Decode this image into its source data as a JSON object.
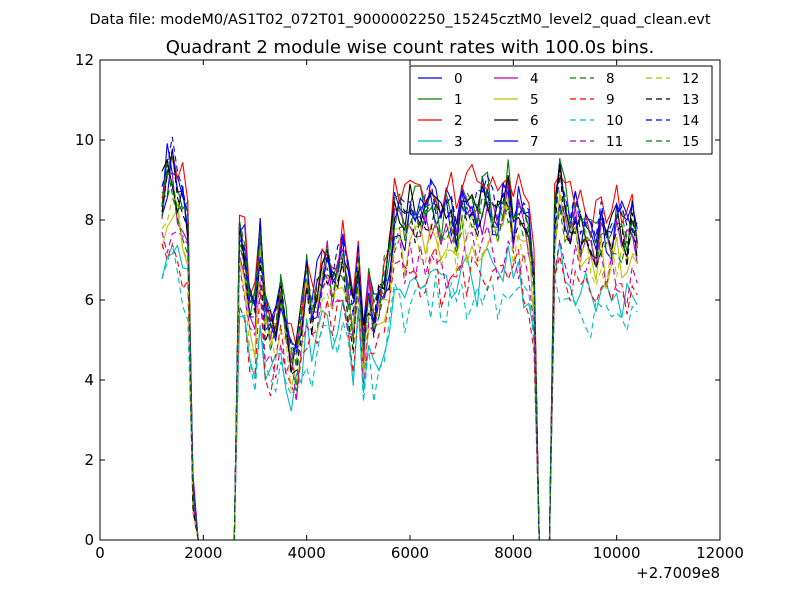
{
  "chart_data": {
    "type": "line",
    "suptitle": "Data file: modeM0/AS1T02_072T01_9000002250_15245cztM0_level2_quad_clean.evt",
    "title": "Quadrant 2 module wise count rates with 100.0s bins.",
    "xlabel": "",
    "ylabel": "",
    "xlim": [
      0,
      12000
    ],
    "ylim": [
      0,
      12
    ],
    "xticks": [
      "0",
      "2000",
      "4000",
      "6000",
      "8000",
      "10000",
      "12000"
    ],
    "yticks": [
      "0",
      "2",
      "4",
      "6",
      "8",
      "10",
      "12"
    ],
    "x_offset_label": "+2.7009e8",
    "legend_position": "top-right",
    "grid": false,
    "series": [
      {
        "name": "0",
        "color": "#0000ff",
        "dash": "solid"
      },
      {
        "name": "1",
        "color": "#008000",
        "dash": "solid"
      },
      {
        "name": "2",
        "color": "#ff0000",
        "dash": "solid"
      },
      {
        "name": "3",
        "color": "#00bfbf",
        "dash": "solid"
      },
      {
        "name": "4",
        "color": "#bf00bf",
        "dash": "solid"
      },
      {
        "name": "5",
        "color": "#bfbf00",
        "dash": "solid"
      },
      {
        "name": "6",
        "color": "#000000",
        "dash": "solid"
      },
      {
        "name": "7",
        "color": "#0000ff",
        "dash": "solid"
      },
      {
        "name": "8",
        "color": "#008000",
        "dash": "dashed"
      },
      {
        "name": "9",
        "color": "#ff0000",
        "dash": "dashed"
      },
      {
        "name": "10",
        "color": "#00bfbf",
        "dash": "dashed"
      },
      {
        "name": "11",
        "color": "#bf00bf",
        "dash": "dashed"
      },
      {
        "name": "12",
        "color": "#bfbf00",
        "dash": "dashed"
      },
      {
        "name": "13",
        "color": "#000000",
        "dash": "dashed"
      },
      {
        "name": "14",
        "color": "#0000ff",
        "dash": "dashed"
      },
      {
        "name": "15",
        "color": "#008000",
        "dash": "dashed"
      }
    ],
    "x": [
      1200,
      1300,
      1400,
      1500,
      1600,
      1700,
      1800,
      1900,
      2000,
      2100,
      2200,
      2300,
      2400,
      2500,
      2600,
      2700,
      2800,
      2900,
      3000,
      3100,
      3200,
      3300,
      3400,
      3500,
      3600,
      3700,
      3800,
      3900,
      4000,
      4100,
      4200,
      4300,
      4400,
      4500,
      4600,
      4700,
      4800,
      4900,
      5000,
      5100,
      5200,
      5300,
      5400,
      5500,
      5600,
      5700,
      5800,
      5900,
      6000,
      6100,
      6200,
      6300,
      6400,
      6500,
      6600,
      6700,
      6800,
      6900,
      7000,
      7100,
      7200,
      7300,
      7400,
      7500,
      7600,
      7700,
      7800,
      7900,
      8000,
      8100,
      8200,
      8300,
      8400,
      8500,
      8600,
      8700,
      8800,
      8900,
      9000,
      9100,
      9200,
      9300,
      9400,
      9500,
      9600,
      9700,
      9800,
      9900,
      10000,
      10100,
      10200,
      10300,
      10400
    ],
    "levels": [
      9.2,
      9.7,
      10.0,
      9.3,
      9.0,
      8.5,
      1.2,
      0,
      0,
      0,
      0,
      0,
      0,
      0,
      0,
      8.0,
      7.6,
      6.2,
      6.0,
      8.0,
      6.0,
      5.6,
      5.8,
      6.8,
      5.6,
      5.0,
      4.8,
      6.0,
      7.0,
      6.2,
      6.6,
      7.2,
      7.6,
      7.0,
      7.2,
      7.8,
      6.6,
      5.8,
      7.6,
      5.2,
      6.8,
      5.8,
      6.4,
      7.0,
      7.4,
      8.6,
      8.8,
      8.4,
      8.9,
      8.7,
      8.8,
      8.6,
      8.9,
      9.0,
      8.4,
      8.6,
      8.8,
      8.2,
      9.2,
      8.8,
      9.0,
      8.6,
      9.0,
      9.1,
      8.8,
      8.6,
      9.0,
      9.4,
      8.4,
      8.9,
      8.6,
      8.3,
      7.0,
      0,
      0,
      0,
      8.8,
      9.6,
      8.9,
      8.6,
      8.7,
      8.4,
      8.6,
      8.2,
      8.0,
      8.3,
      8.0,
      8.1,
      8.4,
      8.2,
      8.0,
      8.4,
      7.8
    ],
    "scales": [
      0.97,
      0.95,
      0.99,
      0.74,
      0.91,
      0.85,
      0.94,
      0.93,
      0.9,
      0.75,
      0.68,
      0.8,
      0.85,
      0.92,
      0.96,
      0.93
    ]
  }
}
